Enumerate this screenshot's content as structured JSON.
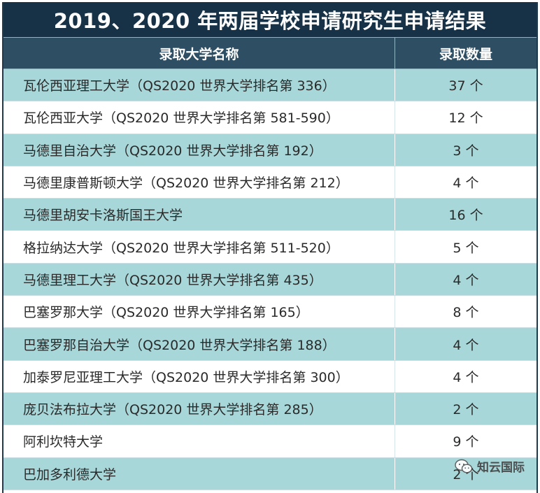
{
  "title": "2019、2020 年两届学校申请研究生申请结果",
  "header": {
    "name_col": "录取大学名称",
    "count_col": "录取数量"
  },
  "rows": [
    {
      "name": "瓦伦西亚理工大学（QS2020 世界大学排名第 336）",
      "count": "37 个"
    },
    {
      "name": "瓦伦西亚大学（QS2020 世界大学排名第 581-590）",
      "count": "12 个"
    },
    {
      "name": "马德里自治大学（QS2020 世界大学排名第 192）",
      "count": "3 个"
    },
    {
      "name": "马德里康普斯顿大学（QS2020 世界大学排名第 212）",
      "count": "4 个"
    },
    {
      "name": "马德里胡安卡洛斯国王大学",
      "count": "16 个"
    },
    {
      "name": "格拉纳达大学（QS2020 世界大学排名第 511-520）",
      "count": "5 个"
    },
    {
      "name": "马德里理工大学（QS2020 世界大学排名第 435）",
      "count": "4 个"
    },
    {
      "name": "巴塞罗那大学（QS2020 世界大学排名第 165）",
      "count": "8 个"
    },
    {
      "name": "巴塞罗那自治大学（QS2020 世界大学排名第 188）",
      "count": "4 个"
    },
    {
      "name": "加泰罗尼亚理工大学（QS2020 世界大学排名第 300）",
      "count": "4 个"
    },
    {
      "name": "庞贝法布拉大学（QS2020 世界大学排名第 285）",
      "count": "2 个"
    },
    {
      "name": "阿利坎特大学",
      "count": "9 个"
    },
    {
      "name": "巴加多利德大学",
      "count": "2 个"
    }
  ],
  "watermark": {
    "text": "知云国际",
    "icon": "wechat-icon"
  },
  "colors": {
    "title_bg": "#173246",
    "header_bg": "#2e4f63",
    "row_teal": "#a8d7d9",
    "row_white": "#ffffff"
  }
}
